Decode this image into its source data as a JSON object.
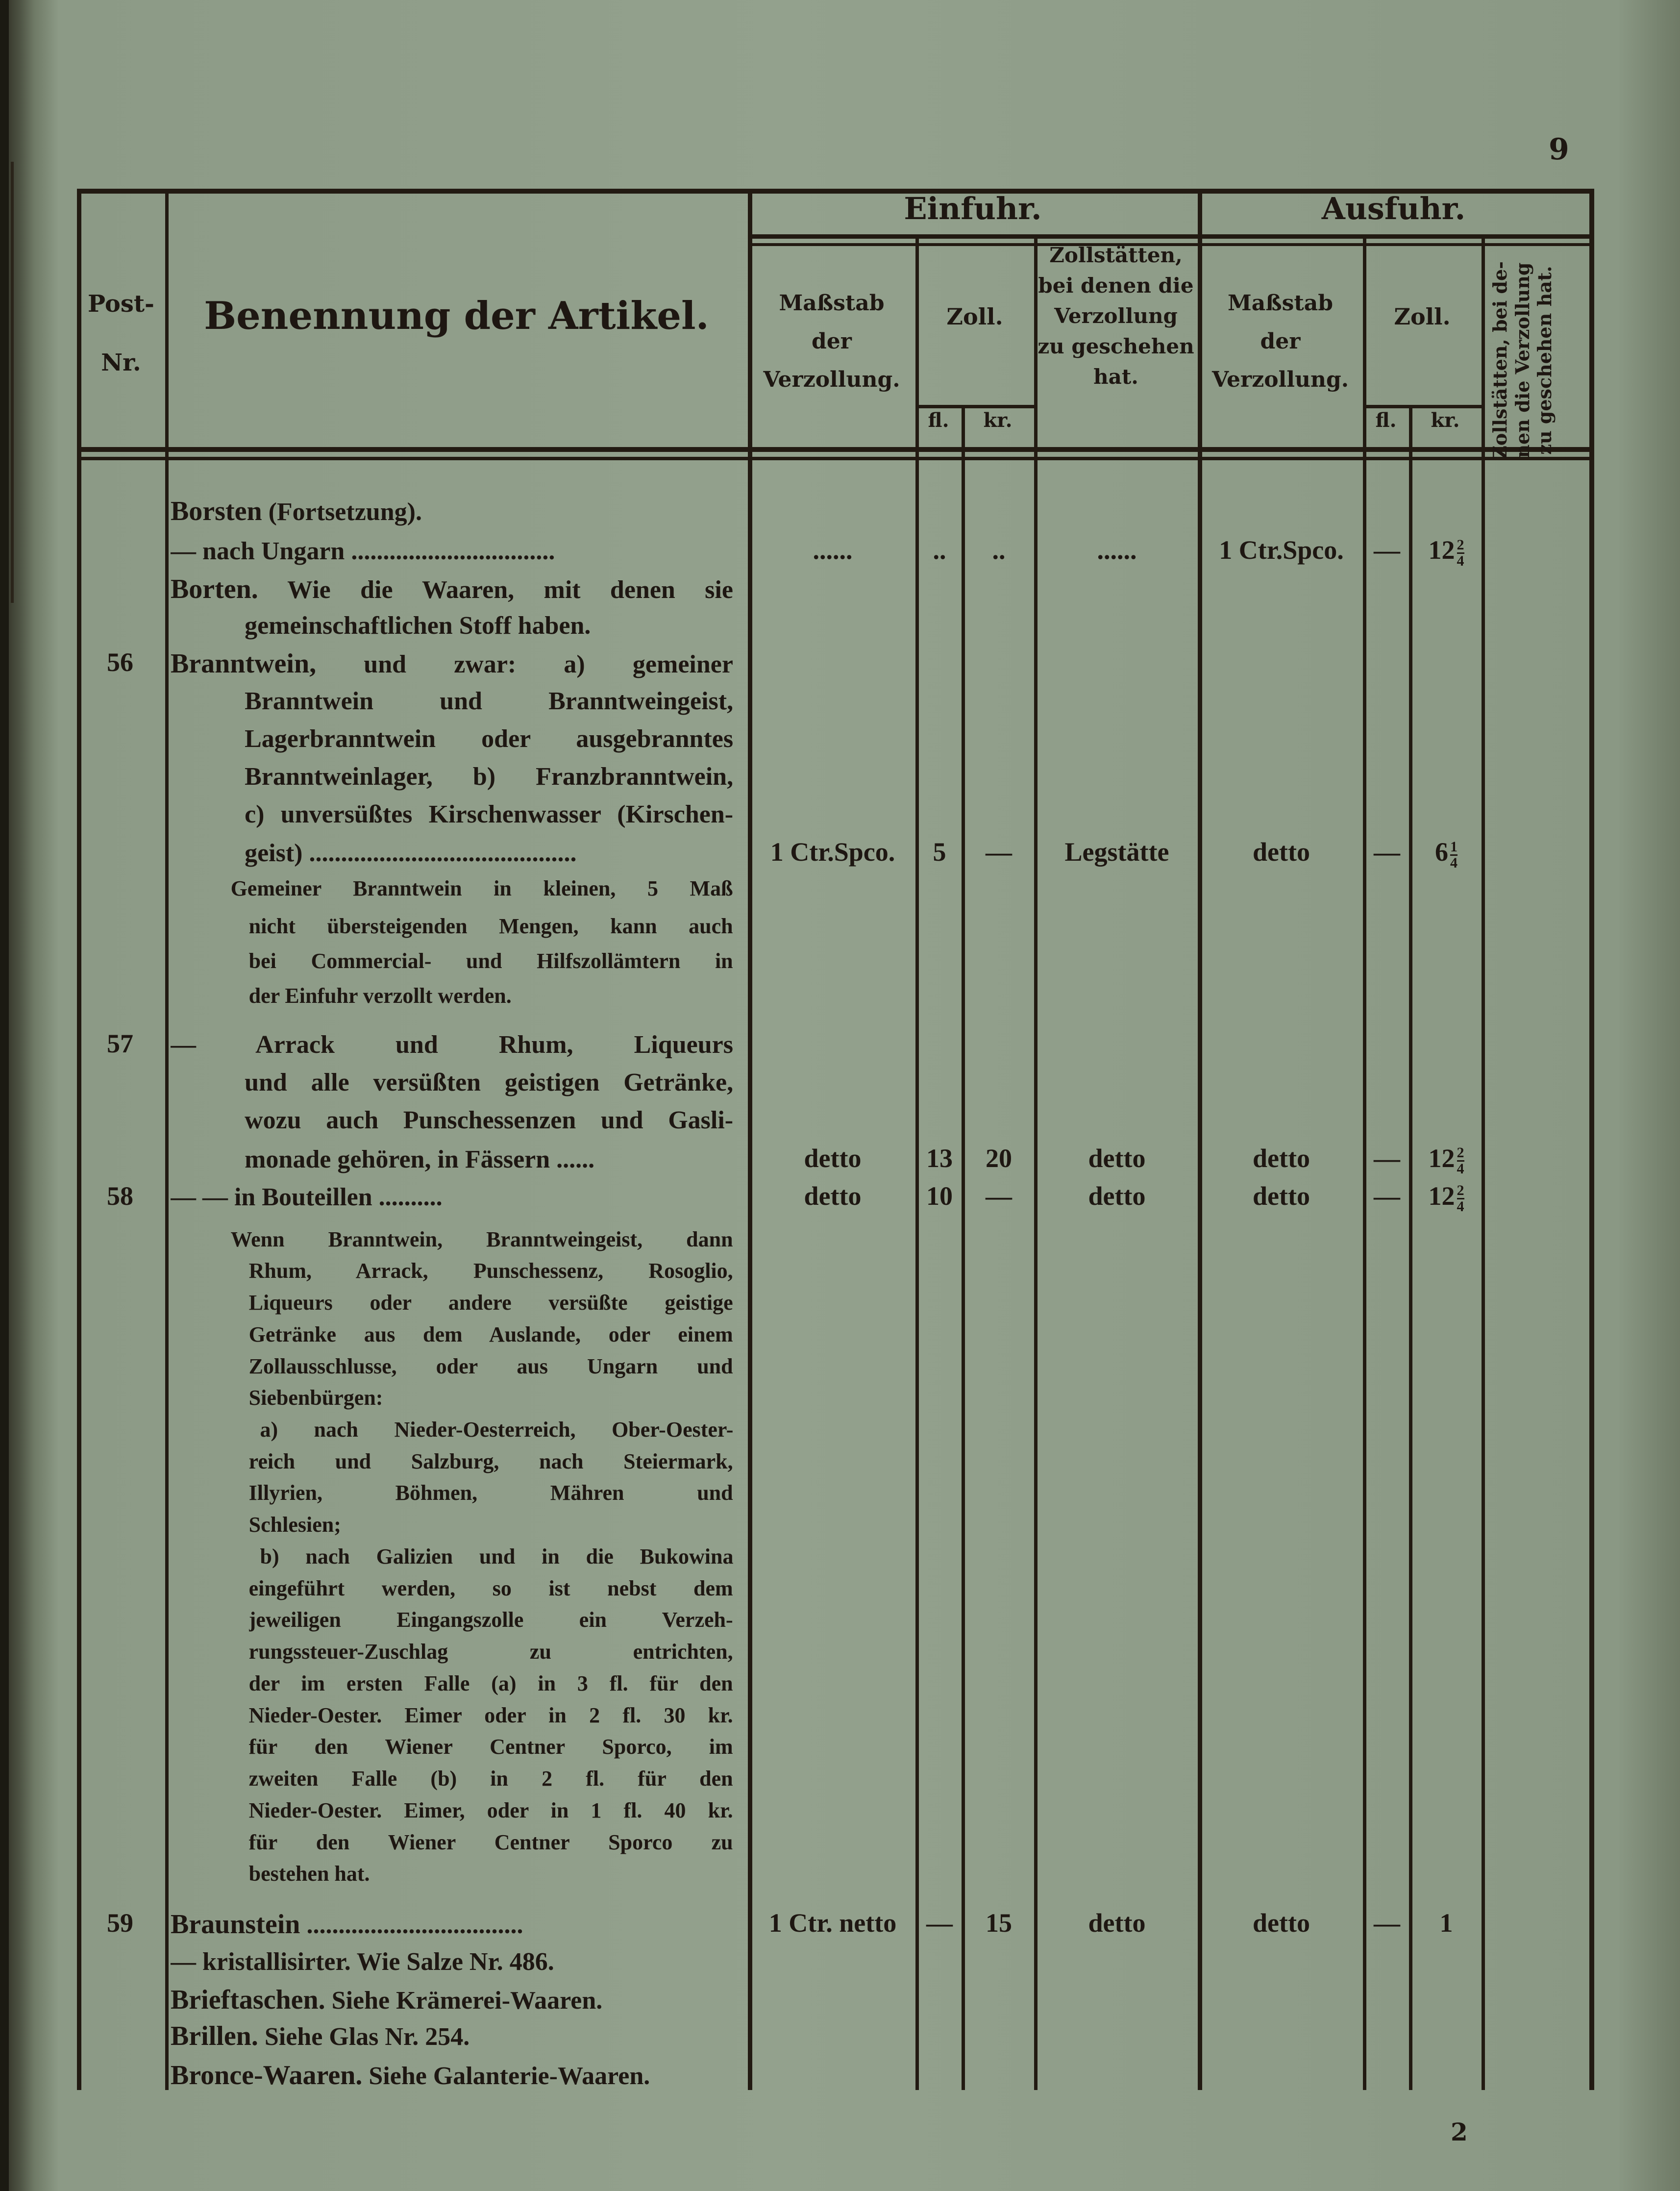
{
  "page_number": "9",
  "signature_mark": "2",
  "header": {
    "post_nr": [
      "Post-",
      "Nr."
    ],
    "article": "Benennung der Artikel.",
    "import": "Einfuhr.",
    "export": "Ausfuhr.",
    "standard": [
      "Maßstab",
      "der",
      "Verzollung."
    ],
    "duty": "Zoll.",
    "fl": "fl.",
    "kr": "kr.",
    "stations": [
      "Zollstätten,",
      "bei denen die",
      "Verzollung",
      "zu geschehen",
      "hat."
    ],
    "stations_rotated": [
      "Zollstätten, bei de-",
      "nen die Verzollung",
      "zu geschehen hat."
    ]
  },
  "lines": [
    {
      "kind": "entry",
      "lead": "Borsten",
      "text": " (Fortsetzung)."
    },
    {
      "kind": "entry",
      "text": "— nach Ungarn ................................",
      "cells": {
        "ein_mass": "......",
        "ein_fl": "..",
        "ein_kr": "..",
        "ein_stat": "......",
        "aus_mass": "1 Ctr.Spco.",
        "aus_fl": "—",
        "aus_kr": {
          "whole": "12",
          "num": "2",
          "den": "4"
        }
      }
    },
    {
      "kind": "entryj",
      "lead": "Borten.",
      "text": " Wie die Waaren, mit denen sie"
    },
    {
      "kind": "contl",
      "text": "gemeinschaftlichen Stoff haben."
    },
    {
      "kind": "entryj",
      "no": "56",
      "lead": "Branntwein,",
      "text": " und zwar: a) gemeiner"
    },
    {
      "kind": "cont",
      "text": "Branntwein und Branntweingeist,"
    },
    {
      "kind": "cont",
      "text": "Lagerbranntwein oder ausgebranntes"
    },
    {
      "kind": "cont",
      "text": "Branntweinlager, b) Franzbranntwein,"
    },
    {
      "kind": "cont",
      "text": "c) unversüßtes Kirschenwasser (Kirschen-"
    },
    {
      "kind": "contl",
      "text": "geist) ..........................................",
      "cells": {
        "ein_mass": "1 Ctr.Spco.",
        "ein_fl": "5",
        "ein_kr": "—",
        "ein_stat": "Legstätte",
        "aus_mass": "detto",
        "aus_fl": "—",
        "aus_kr": {
          "whole": "6",
          "num": "1",
          "den": "4"
        }
      }
    },
    {
      "kind": "note1",
      "text": "Gemeiner Branntwein in kleinen, 5 Maß"
    },
    {
      "kind": "note2",
      "text": "nicht übersteigenden Mengen, kann auch"
    },
    {
      "kind": "note2",
      "text": "bei Commercial- und Hilfszollämtern in"
    },
    {
      "kind": "note2l",
      "text": "der Einfuhr verzollt werden."
    },
    {
      "kind": "entryj",
      "no": "57",
      "text": "— Arrack und Rhum, Liqueurs"
    },
    {
      "kind": "cont",
      "text": "und alle versüßten geistigen Getränke,"
    },
    {
      "kind": "cont",
      "text": "wozu auch Punschessenzen und Gasli-"
    },
    {
      "kind": "contl",
      "text": "monade gehören, in Fässern ......",
      "cells": {
        "ein_mass": "detto",
        "ein_fl": "13",
        "ein_kr": "20",
        "ein_stat": "detto",
        "aus_mass": "detto",
        "aus_fl": "—",
        "aus_kr": {
          "whole": "12",
          "num": "2",
          "den": "4"
        }
      }
    },
    {
      "kind": "entry",
      "no": "58",
      "text": "— — in Bouteillen ..........",
      "cells": {
        "ein_mass": "detto",
        "ein_fl": "10",
        "ein_kr": "—",
        "ein_stat": "detto",
        "aus_mass": "detto",
        "aus_fl": "—",
        "aus_kr": {
          "whole": "12",
          "num": "2",
          "den": "4"
        }
      }
    },
    {
      "kind": "note1",
      "text": "Wenn Branntwein, Branntweingeist, dann"
    },
    {
      "kind": "note2",
      "text": "Rhum, Arrack, Punschessenz, Rosoglio,"
    },
    {
      "kind": "note2",
      "text": "Liqueurs oder andere versüßte geistige"
    },
    {
      "kind": "note2",
      "text": "Getränke aus dem Auslande, oder einem"
    },
    {
      "kind": "note2",
      "text": "Zollausschlusse, oder aus Ungarn und"
    },
    {
      "kind": "note2l",
      "text": "Siebenbürgen:"
    },
    {
      "kind": "note3",
      "text": "a) nach Nieder-Oesterreich, Ober-Oester-"
    },
    {
      "kind": "note2",
      "text": "reich und Salzburg, nach Steiermark,"
    },
    {
      "kind": "note2",
      "text": "Illyrien, Böhmen, Mähren und"
    },
    {
      "kind": "note2l",
      "text": "Schlesien;"
    },
    {
      "kind": "note3",
      "text": "b) nach Galizien und in die Bukowina"
    },
    {
      "kind": "note2",
      "text": "eingeführt werden, so ist nebst dem"
    },
    {
      "kind": "note2",
      "text": "jeweiligen Eingangszolle ein Verzeh-"
    },
    {
      "kind": "note2",
      "text": "rungssteuer-Zuschlag zu entrichten,"
    },
    {
      "kind": "note2",
      "text": "der im ersten Falle (a) in 3 fl. für den"
    },
    {
      "kind": "note2",
      "text": "Nieder-Oester. Eimer oder in 2 fl. 30 kr."
    },
    {
      "kind": "note2",
      "text": "für den Wiener Centner Sporco, im"
    },
    {
      "kind": "note2",
      "text": "zweiten Falle (b) in 2 fl. für den"
    },
    {
      "kind": "note2",
      "text": "Nieder-Oester. Eimer, oder in 1 fl. 40 kr."
    },
    {
      "kind": "note2",
      "text": "für den Wiener Centner Sporco zu"
    },
    {
      "kind": "note2l",
      "text": "bestehen hat."
    },
    {
      "kind": "entry",
      "no": "59",
      "lead": "Braunstein",
      "text": " ..................................",
      "cells": {
        "ein_mass": "1 Ctr. netto",
        "ein_fl": "—",
        "ein_kr": "15",
        "ein_stat": "detto",
        "aus_mass": "detto",
        "aus_fl": "—",
        "aus_kr": "1"
      }
    },
    {
      "kind": "contl2",
      "text": "— kristallisirter. Wie Salze Nr. 486."
    },
    {
      "kind": "entry",
      "lead": "Brieftaschen.",
      "text": " Siehe Krämerei-Waaren."
    },
    {
      "kind": "entry",
      "lead": "Brillen.",
      "text": " Siehe Glas Nr. 254."
    },
    {
      "kind": "entry",
      "lead": "Bronce-Waaren.",
      "text": " Siehe Galanterie-Waaren."
    }
  ]
}
